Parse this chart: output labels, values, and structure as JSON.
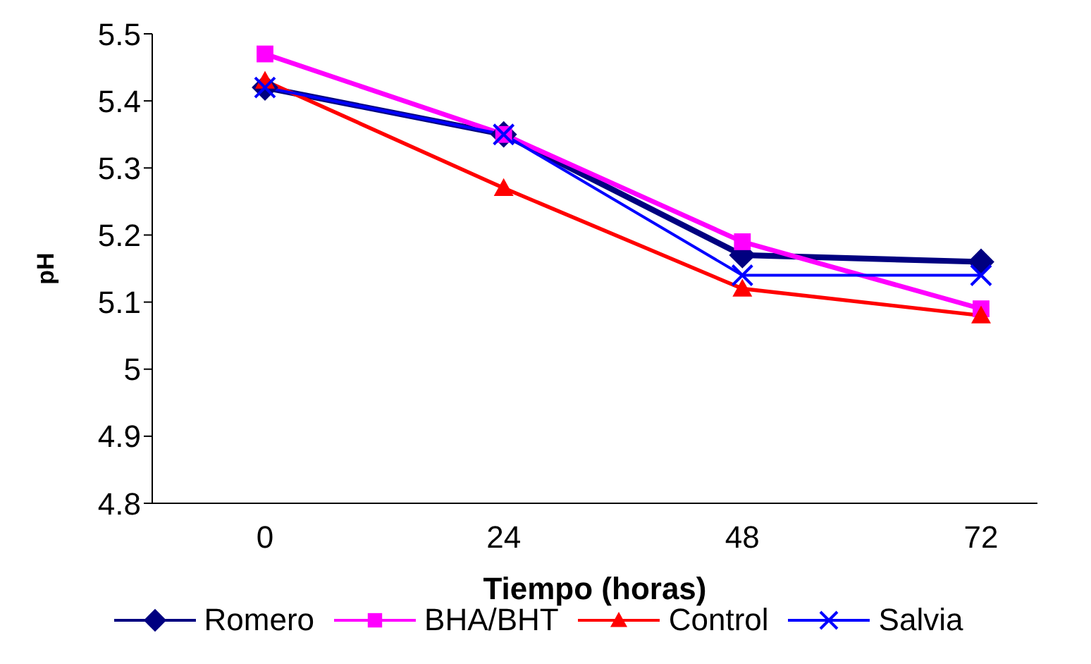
{
  "chart_data": {
    "type": "line",
    "xlabel": "Tiempo (horas)",
    "ylabel": "pH",
    "categories": [
      "0",
      "24",
      "48",
      "72"
    ],
    "ylim": [
      4.8,
      5.5
    ],
    "yticks": [
      4.8,
      4.9,
      5,
      5.1,
      5.2,
      5.3,
      5.4,
      5.5
    ],
    "grid": false,
    "legend": "bottom",
    "line_style": "solid",
    "series": [
      {
        "name": "Romero",
        "color": "#000080",
        "marker": "diamond",
        "values": [
          5.42,
          5.35,
          5.17,
          5.16
        ]
      },
      {
        "name": "BHA/BHT",
        "color": "#ff00ff",
        "marker": "square",
        "values": [
          5.47,
          5.35,
          5.19,
          5.09
        ]
      },
      {
        "name": "Control",
        "color": "#ff0000",
        "marker": "triangle",
        "values": [
          5.43,
          5.27,
          5.12,
          5.08
        ]
      },
      {
        "name": "Salvia",
        "color": "#0000ff",
        "marker": "cross",
        "values": [
          5.42,
          5.35,
          5.14,
          5.14
        ]
      }
    ]
  }
}
